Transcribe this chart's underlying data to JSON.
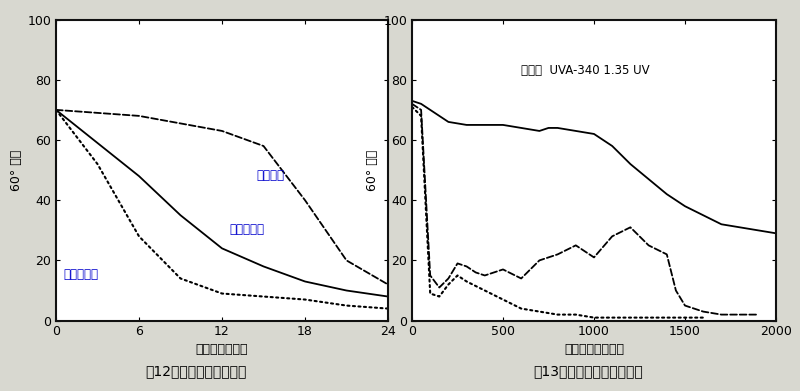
{
  "fig12": {
    "title": "图12－聚氨酯、户外老化",
    "xlabel": "曙晒时间（月）",
    "ylabel": "60° 光泽",
    "xlim": [
      0,
      24
    ],
    "ylim": [
      0,
      100
    ],
    "xticks": [
      0,
      6,
      12,
      18,
      24
    ],
    "yticks": [
      0,
      20,
      40,
      60,
      80,
      100
    ],
    "lines": [
      {
        "label": "俄亥俄州",
        "style": "--",
        "x": [
          0,
          6,
          12,
          15,
          18,
          21,
          24
        ],
        "y": [
          70,
          68,
          63,
          58,
          40,
          20,
          12
        ]
      },
      {
        "label": "亚利桑那州",
        "style": "-",
        "x": [
          0,
          6,
          9,
          12,
          15,
          18,
          21,
          24
        ],
        "y": [
          70,
          48,
          35,
          24,
          18,
          13,
          10,
          8
        ]
      },
      {
        "label": "佛罗里达州",
        "style": ":",
        "x": [
          0,
          3,
          6,
          9,
          12,
          15,
          18,
          21,
          24
        ],
        "y": [
          70,
          52,
          28,
          14,
          9,
          8,
          7,
          5,
          4
        ]
      }
    ],
    "ann_ohio_x": 14.5,
    "ann_ohio_y": 47,
    "ann_arizona_x": 12.5,
    "ann_arizona_y": 29,
    "ann_florida_x": 0.5,
    "ann_florida_y": 14
  },
  "fig13": {
    "title": "图13－聚氨酯、实验室老化",
    "xlabel": "曙晒时间（小时）",
    "ylabel": "60° 光泽",
    "xlim": [
      0,
      2000
    ],
    "ylim": [
      0,
      100
    ],
    "xticks": [
      0,
      500,
      1000,
      1500,
      2000
    ],
    "yticks": [
      0,
      20,
      40,
      60,
      80,
      100
    ],
    "annotation": "只进行  UVA-340 1.35 UV",
    "ann_x": 600,
    "ann_y": 82,
    "lines": [
      {
        "style": "-",
        "x": [
          0,
          50,
          100,
          150,
          200,
          300,
          400,
          500,
          600,
          700,
          750,
          800,
          900,
          1000,
          1100,
          1200,
          1300,
          1400,
          1500,
          1600,
          1700,
          1800,
          1900,
          2000
        ],
        "y": [
          73,
          72,
          70,
          68,
          66,
          65,
          65,
          65,
          64,
          63,
          64,
          64,
          63,
          62,
          58,
          52,
          47,
          42,
          38,
          35,
          32,
          31,
          30,
          29
        ]
      },
      {
        "style": "--",
        "x": [
          0,
          50,
          100,
          150,
          200,
          250,
          300,
          350,
          400,
          500,
          600,
          700,
          800,
          900,
          1000,
          1100,
          1200,
          1300,
          1400,
          1450,
          1500,
          1600,
          1700,
          1800,
          1900
        ],
        "y": [
          72,
          70,
          15,
          11,
          14,
          19,
          18,
          16,
          15,
          17,
          14,
          20,
          22,
          25,
          21,
          28,
          31,
          25,
          22,
          10,
          5,
          3,
          2,
          2,
          2
        ]
      },
      {
        "style": ":",
        "x": [
          0,
          50,
          100,
          150,
          200,
          250,
          300,
          400,
          500,
          600,
          700,
          800,
          900,
          1000,
          1100,
          1200,
          1300,
          1400,
          1500,
          1600
        ],
        "y": [
          71,
          68,
          9,
          8,
          12,
          15,
          13,
          10,
          7,
          4,
          3,
          2,
          2,
          1,
          1,
          1,
          1,
          1,
          1,
          1
        ]
      }
    ]
  },
  "bg_color": "#ffffff",
  "plot_bg": "#ffffff",
  "outer_bg": "#d8d8d0",
  "text_color": "#000000",
  "blue_color": "#0000cc",
  "border_lw": 1.5
}
